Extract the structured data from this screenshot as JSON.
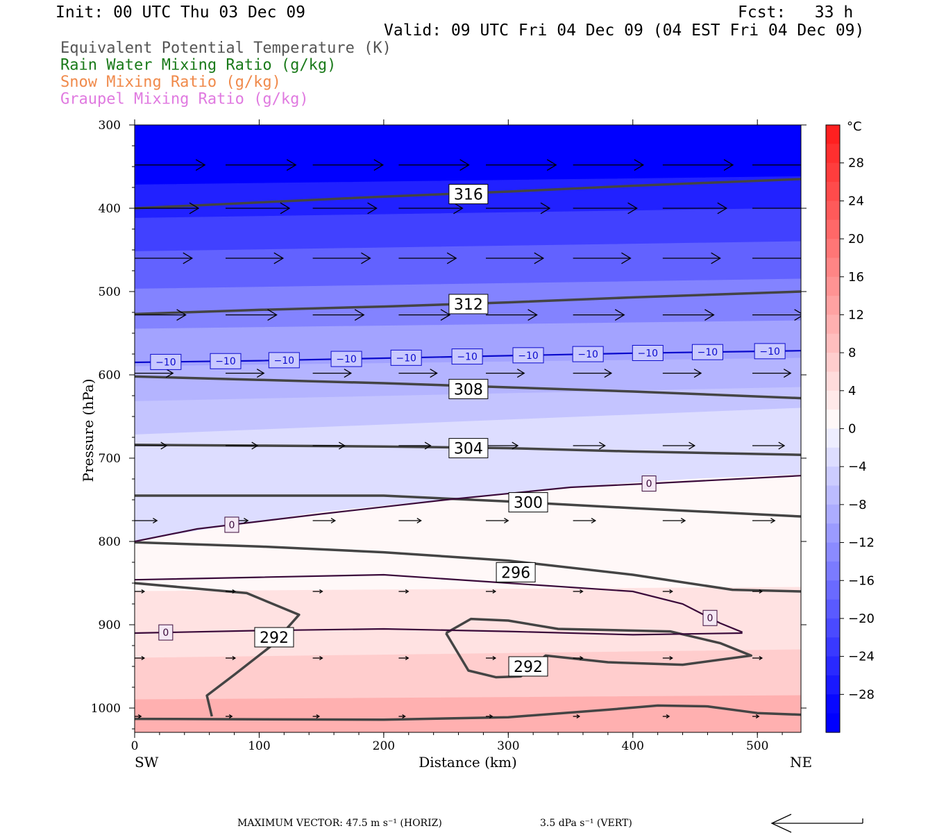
{
  "header": {
    "init": "Init: 00 UTC Thu 03 Dec 09",
    "fcst": "Fcst:   33 h",
    "valid": "Valid: 09 UTC Fri 04 Dec 09 (04 EST Fri 04 Dec 09)"
  },
  "legend": [
    {
      "label": "Equivalent Potential Temperature (K)",
      "color": "#555555"
    },
    {
      "label": "Rain Water Mixing Ratio (g/kg)",
      "color": "#1a7a1a"
    },
    {
      "label": "Snow Mixing Ratio (g/kg)",
      "color": "#f08a4b"
    },
    {
      "label": "Graupel Mixing Ratio (g/kg)",
      "color": "#e07ae0"
    }
  ],
  "colorbar": {
    "unit": "°C",
    "ticks": [
      "28",
      "24",
      "20",
      "16",
      "12",
      "8",
      "4",
      "0",
      "−4",
      "−8",
      "−12",
      "−16",
      "−20",
      "−24",
      "−28"
    ],
    "tick_values": [
      28,
      24,
      20,
      16,
      12,
      8,
      4,
      0,
      -4,
      -8,
      -12,
      -16,
      -20,
      -24,
      -28
    ],
    "range": [
      -32,
      32
    ]
  },
  "footer": {
    "max_vector": "MAXIMUM VECTOR:  47.5 m s⁻¹ (HORIZ)",
    "vert": "3.5 dPa s⁻¹ (VERT)"
  },
  "chart_data": {
    "type": "cross-section contour",
    "xlabel": "Distance (km)",
    "ylabel": "Pressure (hPa)",
    "xlim": [
      0,
      535
    ],
    "ylim": [
      1030,
      300
    ],
    "x_ticks": [
      "0",
      "100",
      "200",
      "300",
      "400",
      "500"
    ],
    "x_tick_values": [
      0,
      100,
      200,
      300,
      400,
      500
    ],
    "y_ticks": [
      "300",
      "400",
      "500",
      "600",
      "700",
      "800",
      "900",
      "1000"
    ],
    "y_tick_values": [
      300,
      400,
      500,
      600,
      700,
      800,
      900,
      1000
    ],
    "x_end_labels": {
      "left": "SW",
      "right": "NE"
    },
    "temperature_fill_bands": [
      {
        "temp": -30,
        "top": [
          [
            0,
            300
          ],
          [
            535,
            300
          ]
        ],
        "bottom": [
          [
            0,
            372
          ],
          [
            535,
            362
          ]
        ]
      },
      {
        "temp": -26,
        "bottom": [
          [
            0,
            412
          ],
          [
            535,
            400
          ]
        ]
      },
      {
        "temp": -22,
        "bottom": [
          [
            0,
            452
          ],
          [
            535,
            440
          ]
        ]
      },
      {
        "temp": -18,
        "bottom": [
          [
            0,
            497
          ],
          [
            535,
            485
          ]
        ]
      },
      {
        "temp": -14,
        "bottom": [
          [
            0,
            545
          ],
          [
            535,
            535
          ]
        ]
      },
      {
        "temp": -10,
        "bottom": [
          [
            0,
            590
          ],
          [
            535,
            580
          ]
        ]
      },
      {
        "temp": -8,
        "bottom": [
          [
            0,
            632
          ],
          [
            535,
            615
          ]
        ]
      },
      {
        "temp": -6,
        "bottom": [
          [
            0,
            672
          ],
          [
            535,
            640
          ]
        ]
      },
      {
        "temp": -3,
        "bottom": [
          [
            0,
            800
          ],
          [
            60,
            785
          ],
          [
            150,
            765
          ],
          [
            250,
            750
          ],
          [
            350,
            735
          ],
          [
            450,
            725
          ],
          [
            535,
            720
          ]
        ]
      },
      {
        "temp": 1,
        "bottom": [
          [
            0,
            860
          ],
          [
            535,
            855
          ]
        ]
      },
      {
        "temp": 4,
        "bottom": [
          [
            0,
            940
          ],
          [
            535,
            930
          ]
        ]
      },
      {
        "temp": 7,
        "bottom": [
          [
            0,
            990
          ],
          [
            535,
            985
          ]
        ]
      },
      {
        "temp": 11,
        "bottom": [
          [
            0,
            1030
          ],
          [
            535,
            1030
          ]
        ]
      }
    ],
    "theta_e_contours": [
      {
        "label": "316",
        "label_at": [
          268,
          383
        ],
        "points": [
          [
            0,
            400
          ],
          [
            100,
            393
          ],
          [
            200,
            386
          ],
          [
            300,
            380
          ],
          [
            400,
            373
          ],
          [
            535,
            365
          ]
        ]
      },
      {
        "label": "312",
        "label_at": [
          268,
          515
        ],
        "points": [
          [
            0,
            527
          ],
          [
            100,
            522
          ],
          [
            200,
            518
          ],
          [
            300,
            513
          ],
          [
            400,
            507
          ],
          [
            535,
            500
          ]
        ]
      },
      {
        "label": "308",
        "label_at": [
          268,
          617
        ],
        "points": [
          [
            0,
            602
          ],
          [
            100,
            606
          ],
          [
            200,
            610
          ],
          [
            300,
            615
          ],
          [
            400,
            620
          ],
          [
            535,
            628
          ]
        ]
      },
      {
        "label": "304",
        "label_at": [
          268,
          688
        ],
        "points": [
          [
            0,
            684
          ],
          [
            100,
            685
          ],
          [
            200,
            686
          ],
          [
            300,
            688
          ],
          [
            400,
            692
          ],
          [
            535,
            696
          ]
        ]
      },
      {
        "label": "300",
        "label_at": [
          316,
          753
        ],
        "points": [
          [
            0,
            745
          ],
          [
            200,
            745
          ],
          [
            300,
            752
          ],
          [
            400,
            760
          ],
          [
            535,
            770
          ]
        ]
      },
      {
        "label": "296",
        "label_at": [
          306,
          837
        ],
        "points": [
          [
            0,
            801
          ],
          [
            100,
            806
          ],
          [
            200,
            813
          ],
          [
            300,
            823
          ],
          [
            400,
            840
          ],
          [
            480,
            858
          ],
          [
            535,
            860
          ]
        ]
      },
      {
        "label": "292",
        "label_at": [
          112,
          915
        ],
        "points": [
          [
            0,
            850
          ],
          [
            90,
            862
          ],
          [
            132,
            888
          ],
          [
            110,
            925
          ],
          [
            80,
            960
          ],
          [
            58,
            985
          ],
          [
            62,
            1010
          ]
        ]
      },
      {
        "label": "292",
        "label_at": [
          316,
          950
        ],
        "points": [
          [
            250,
            910
          ],
          [
            270,
            893
          ],
          [
            300,
            895
          ],
          [
            340,
            905
          ],
          [
            430,
            908
          ],
          [
            470,
            922
          ],
          [
            495,
            937
          ],
          [
            440,
            948
          ],
          [
            380,
            945
          ],
          [
            330,
            937
          ],
          [
            310,
            962
          ],
          [
            290,
            963
          ],
          [
            268,
            955
          ],
          [
            250,
            910
          ]
        ]
      },
      {
        "label": "",
        "points": [
          [
            0,
            1013
          ],
          [
            200,
            1014
          ],
          [
            300,
            1011
          ],
          [
            380,
            1002
          ],
          [
            420,
            997
          ],
          [
            460,
            998
          ],
          [
            500,
            1006
          ],
          [
            535,
            1008
          ]
        ]
      }
    ],
    "temperature_contours": [
      {
        "value": -10,
        "label": "−10",
        "color": "#0a0acc",
        "points": [
          [
            0,
            585
          ],
          [
            100,
            583
          ],
          [
            200,
            580
          ],
          [
            300,
            577
          ],
          [
            400,
            574
          ],
          [
            535,
            571
          ]
        ],
        "label_x": [
          25,
          73,
          120,
          170,
          218,
          267,
          316,
          364,
          412,
          460,
          510
        ]
      },
      {
        "value": 0,
        "label": "0",
        "color": "#3a0a3a",
        "points": [
          [
            0,
            800
          ],
          [
            50,
            785
          ],
          [
            150,
            767
          ],
          [
            250,
            750
          ],
          [
            350,
            735
          ],
          [
            420,
            730
          ],
          [
            535,
            721
          ]
        ],
        "label_x": [
          78,
          413
        ]
      },
      {
        "value": 0,
        "label": "0",
        "color": "#3a0a3a",
        "points": [
          [
            0,
            846
          ],
          [
            100,
            843
          ],
          [
            200,
            840
          ],
          [
            300,
            850
          ],
          [
            400,
            860
          ],
          [
            440,
            875
          ],
          [
            470,
            898
          ],
          [
            488,
            909
          ]
        ],
        "label_x": [
          462
        ]
      },
      {
        "value": 0,
        "label": "0",
        "color": "#3a0a3a",
        "points": [
          [
            0,
            910
          ],
          [
            100,
            907
          ],
          [
            200,
            905
          ],
          [
            300,
            908
          ],
          [
            400,
            912
          ],
          [
            488,
            910
          ]
        ],
        "label_x": [
          25
        ]
      }
    ],
    "wind_vectors": [
      {
        "p": 348,
        "x": [
          0,
          73,
          143,
          212,
          282,
          352,
          424,
          496
        ],
        "u": [
          22,
          22,
          22,
          22,
          22,
          22,
          22,
          22
        ]
      },
      {
        "p": 400,
        "x": [
          0,
          73,
          143,
          212,
          282,
          352,
          424,
          496
        ],
        "u": [
          20,
          20,
          20,
          20,
          20,
          20,
          20,
          20
        ]
      },
      {
        "p": 460,
        "x": [
          0,
          73,
          143,
          212,
          282,
          352,
          424,
          496
        ],
        "u": [
          18,
          18,
          18,
          18,
          18,
          18,
          18,
          18
        ]
      },
      {
        "p": 528,
        "x": [
          0,
          73,
          143,
          212,
          282,
          352,
          424,
          496
        ],
        "u": [
          16,
          16,
          16,
          16,
          16,
          16,
          16,
          16
        ]
      },
      {
        "p": 598,
        "x": [
          0,
          73,
          143,
          212,
          282,
          352,
          424,
          496
        ],
        "u": [
          12,
          12,
          12,
          12,
          12,
          12,
          12,
          12
        ]
      },
      {
        "p": 685,
        "x": [
          0,
          73,
          143,
          212,
          282,
          352,
          424,
          496
        ],
        "u": [
          10,
          10,
          10,
          10,
          10,
          10,
          10,
          10
        ]
      },
      {
        "p": 775,
        "x": [
          0,
          73,
          143,
          212,
          282,
          352,
          424,
          496
        ],
        "u": [
          7,
          7,
          7,
          7,
          7,
          7,
          7,
          7
        ]
      },
      {
        "p": 860,
        "x": [
          0,
          73,
          143,
          212,
          282,
          352,
          424,
          496
        ],
        "u": [
          3,
          3,
          3,
          3,
          3,
          3,
          3,
          3
        ]
      },
      {
        "p": 940,
        "x": [
          0,
          73,
          143,
          212,
          282,
          352,
          424,
          496
        ],
        "u": [
          3,
          3,
          3,
          3,
          3,
          3,
          3,
          3
        ]
      },
      {
        "p": 1010,
        "x": [
          0,
          73,
          143,
          212,
          282,
          352,
          424,
          496
        ],
        "u": [
          2,
          2,
          2,
          2,
          2,
          2,
          2,
          2
        ]
      }
    ]
  }
}
